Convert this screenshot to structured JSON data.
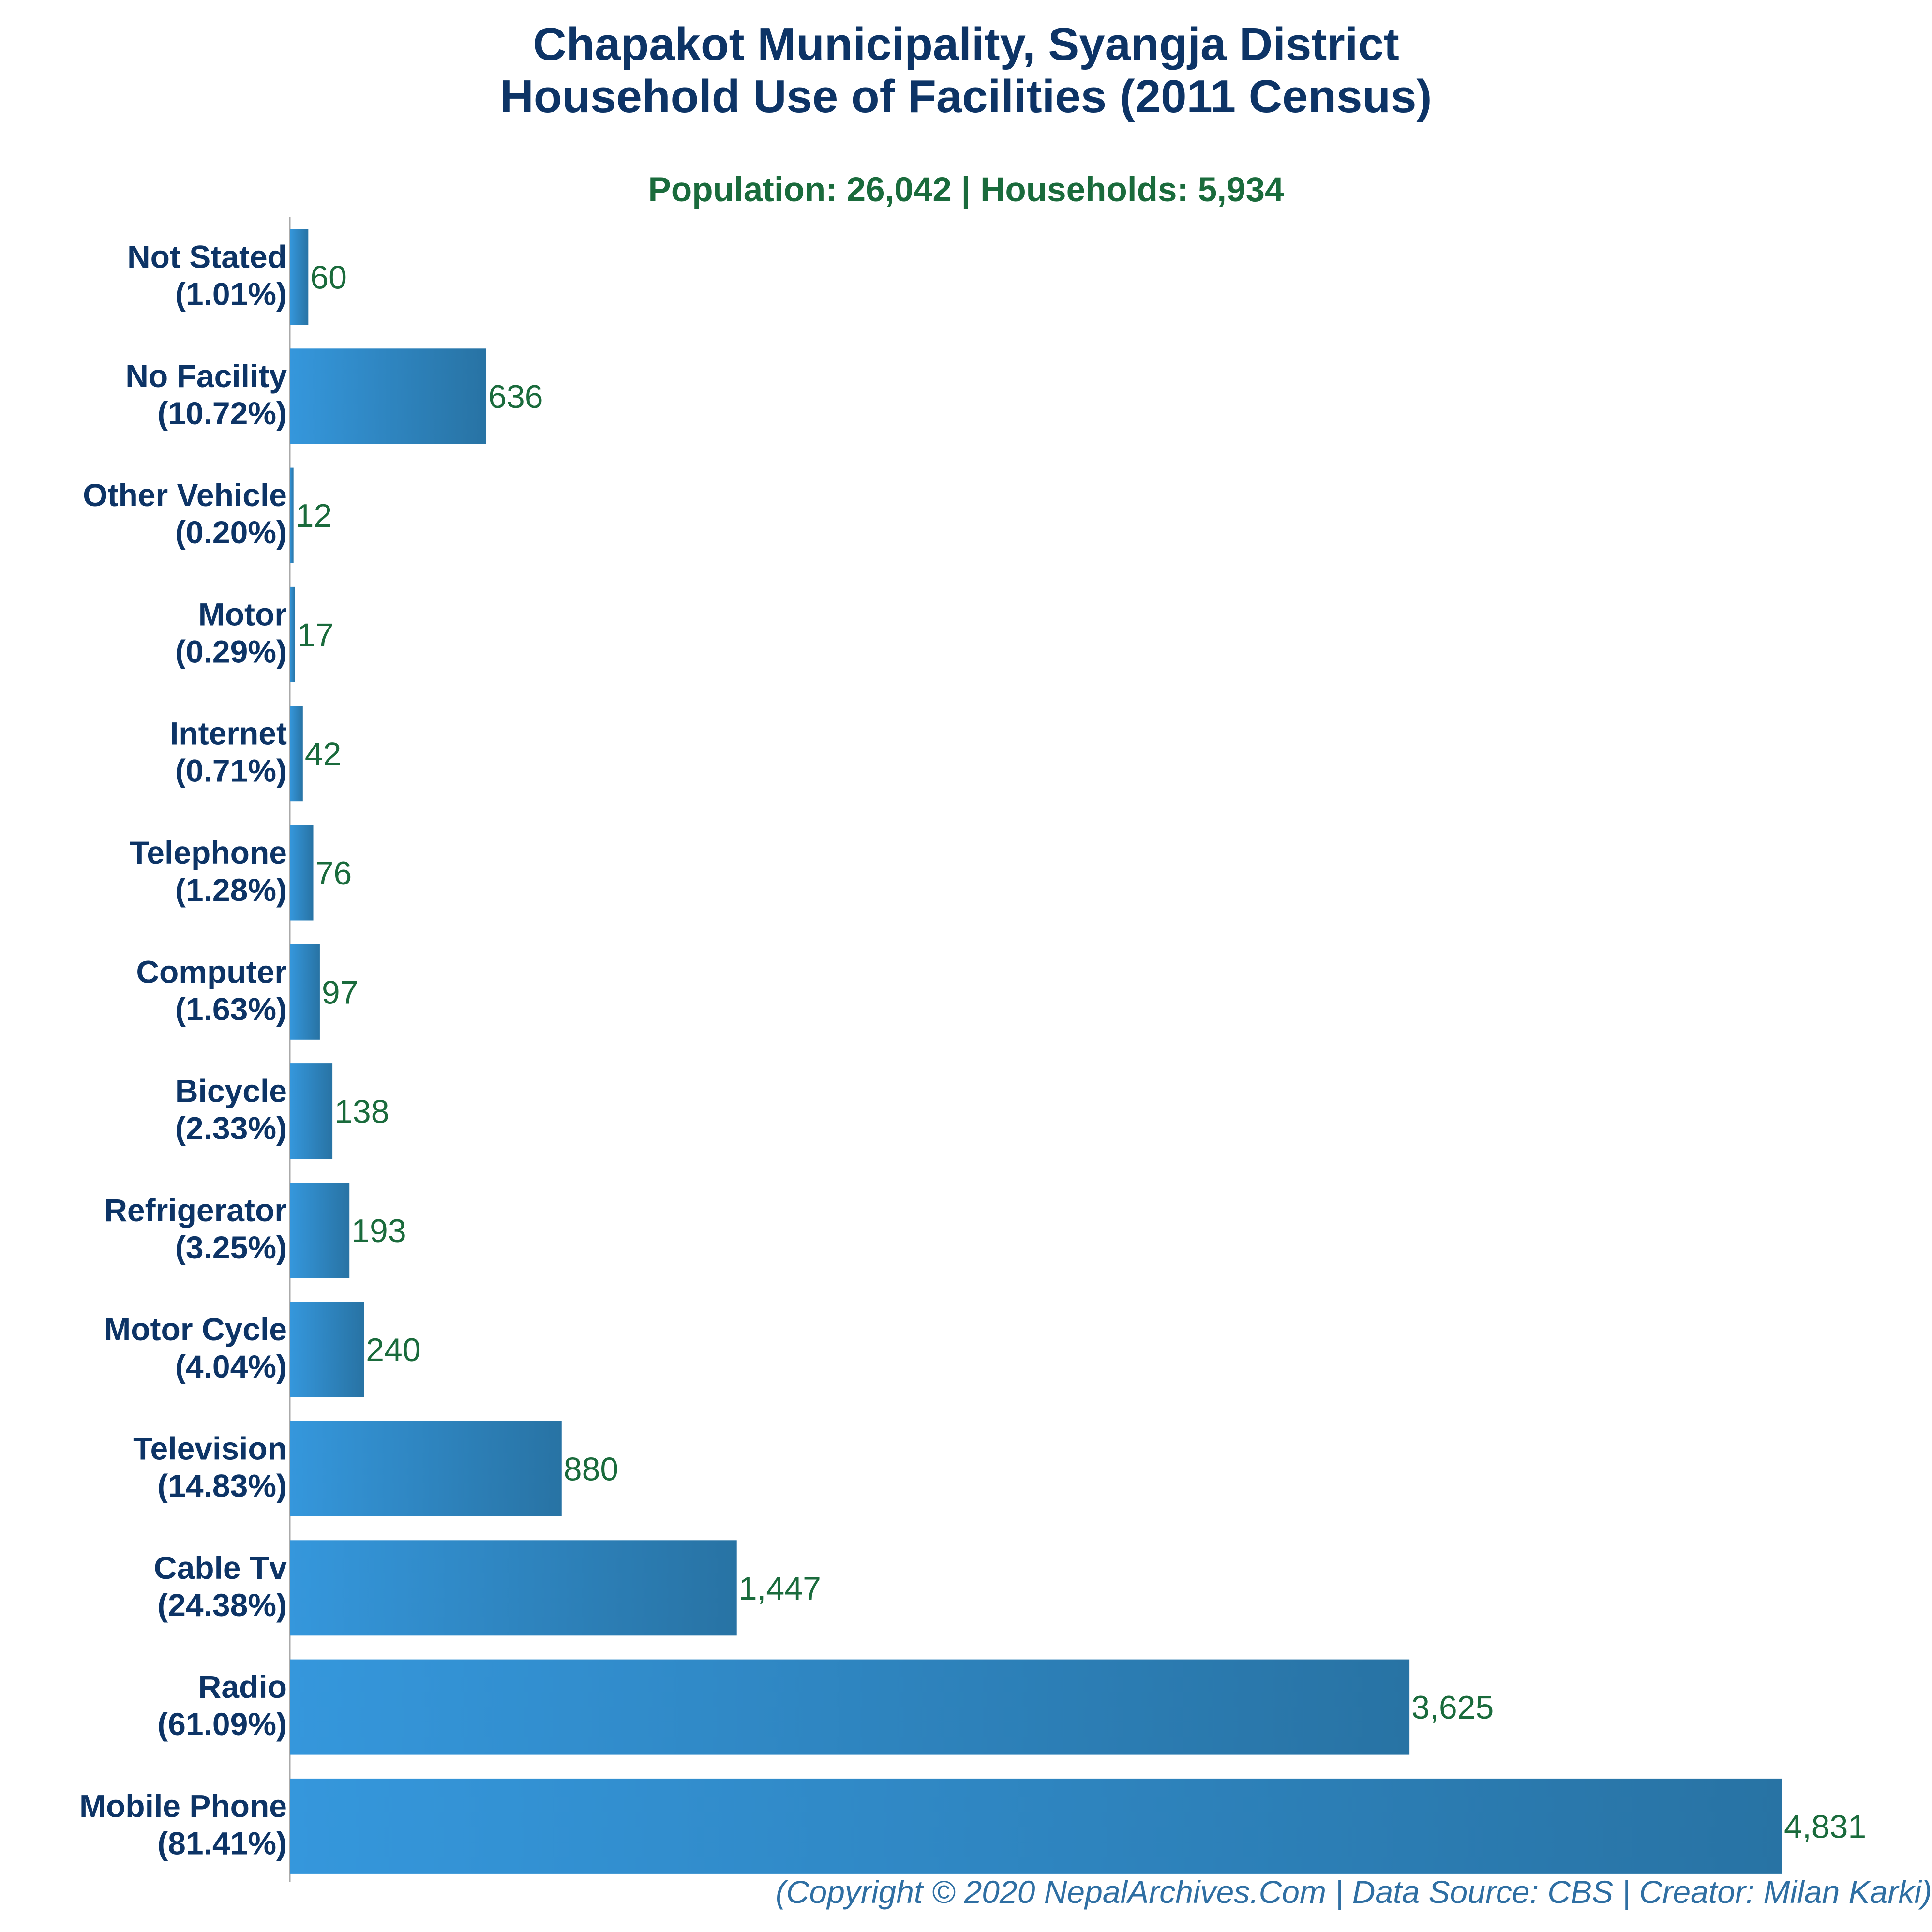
{
  "title_line1": "Chapakot Municipality, Syangja District",
  "title_line2": "Household Use of Facilities (2011 Census)",
  "subtitle": "Population: 26,042 | Households: 5,934",
  "copyright": "(Copyright © 2020 NepalArchives.Com | Data Source: CBS | Creator: Milan Karki)",
  "colors": {
    "title": "#0d3466",
    "subtitle": "#1a6b3c",
    "bar_light": "#3597dc",
    "bar_dark": "#2873a4",
    "value_label": "#1a6b3c",
    "category_label": "#0d3466",
    "copyright": "#2f6fa3"
  },
  "chart_data": {
    "type": "bar",
    "orientation": "horizontal",
    "grid": false,
    "categories": [
      "Not Stated",
      "No Facility",
      "Other Vehicle",
      "Motor",
      "Internet",
      "Telephone",
      "Computer",
      "Bicycle",
      "Refrigerator",
      "Motor Cycle",
      "Television",
      "Cable Tv",
      "Radio",
      "Mobile Phone"
    ],
    "percent_labels": [
      "(1.01%)",
      "(10.72%)",
      "(0.20%)",
      "(0.29%)",
      "(0.71%)",
      "(1.28%)",
      "(1.63%)",
      "(2.33%)",
      "(3.25%)",
      "(4.04%)",
      "(14.83%)",
      "(24.38%)",
      "(61.09%)",
      "(81.41%)"
    ],
    "values": [
      60,
      636,
      12,
      17,
      42,
      76,
      97,
      138,
      193,
      240,
      880,
      1447,
      3625,
      4831
    ],
    "value_labels": [
      "60",
      "636",
      "12",
      "17",
      "42",
      "76",
      "97",
      "138",
      "193",
      "240",
      "880",
      "1,447",
      "3,625",
      "4,831"
    ],
    "xlim": [
      0,
      4831
    ]
  }
}
